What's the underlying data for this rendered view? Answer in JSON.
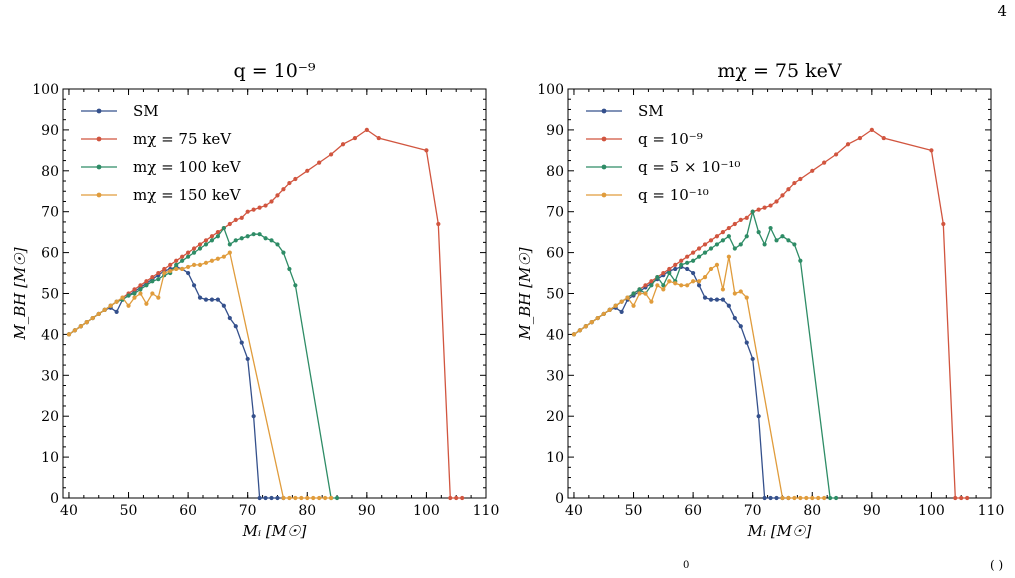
{
  "page": {
    "number": "4",
    "footer_glyph": "0",
    "footer_paren": "( )"
  },
  "colors": {
    "SM": "#34508c",
    "red": "#d1553f",
    "green": "#2e8c66",
    "orange": "#e09c3c"
  },
  "chart_data": [
    {
      "type": "line",
      "title": "q = 10⁻⁹",
      "xlabel": "Mᵢ [M☉]",
      "ylabel": "M_BH [M☉]",
      "xlim": [
        39,
        110
      ],
      "ylim": [
        0,
        100
      ],
      "xticks": [
        40,
        50,
        60,
        70,
        80,
        90,
        100,
        110
      ],
      "yticks": [
        0,
        10,
        20,
        30,
        40,
        50,
        60,
        70,
        80,
        90,
        100
      ],
      "legend_position": "top-left",
      "series": [
        {
          "name": "SM",
          "color": "#34508c",
          "x": [
            40,
            41,
            42,
            43,
            44,
            45,
            46,
            47,
            48,
            49,
            50,
            51,
            52,
            53,
            54,
            55,
            56,
            57,
            58,
            59,
            60,
            61,
            62,
            63,
            64,
            65,
            66,
            67,
            68,
            69,
            70,
            71,
            72,
            73,
            74,
            75,
            76
          ],
          "y": [
            40,
            41,
            42,
            43,
            44,
            45,
            46,
            46.5,
            45.5,
            48.5,
            49.5,
            50.5,
            51.5,
            52.5,
            53.5,
            54.5,
            55.5,
            56,
            56.5,
            56,
            55,
            52,
            49,
            48.5,
            48.5,
            48.5,
            47,
            44,
            42,
            38,
            34,
            20,
            0,
            0,
            0,
            0,
            0
          ]
        },
        {
          "name": "mχ = 75 keV",
          "color": "#d1553f",
          "x": [
            40,
            41,
            42,
            43,
            44,
            45,
            46,
            47,
            48,
            49,
            50,
            51,
            52,
            53,
            54,
            55,
            56,
            57,
            58,
            59,
            60,
            61,
            62,
            63,
            64,
            65,
            66,
            67,
            68,
            69,
            70,
            71,
            72,
            73,
            74,
            75,
            76,
            77,
            78,
            80,
            82,
            84,
            86,
            88,
            90,
            92,
            100,
            102,
            104,
            105,
            106
          ],
          "y": [
            40,
            41,
            42,
            43,
            44,
            45,
            46,
            47,
            48,
            49,
            50,
            51,
            52,
            53,
            54,
            55,
            56,
            57,
            58,
            59,
            60,
            61,
            62,
            63,
            64,
            65,
            66,
            67,
            68,
            68.5,
            70,
            70.5,
            71,
            71.5,
            72.5,
            74,
            75.5,
            77,
            78,
            80,
            82,
            84,
            86.5,
            88,
            90,
            88,
            85,
            67,
            0,
            0,
            0
          ],
          "x_wrong": null
        },
        {
          "name": "mχ = 100 keV",
          "color": "#2e8c66",
          "x": [
            40,
            41,
            42,
            43,
            44,
            45,
            46,
            47,
            48,
            49,
            50,
            51,
            52,
            53,
            54,
            55,
            56,
            57,
            58,
            59,
            60,
            61,
            62,
            63,
            64,
            65,
            66,
            67,
            68,
            69,
            70,
            71,
            72,
            73,
            74,
            75,
            76,
            77,
            78,
            84,
            85
          ],
          "y": [
            40,
            41,
            42,
            43,
            44,
            45,
            46,
            47,
            48,
            48.5,
            49.5,
            50,
            51,
            52,
            53,
            53.5,
            54.5,
            55,
            57,
            58,
            59,
            60,
            61,
            62,
            63,
            64,
            66,
            62,
            63,
            63.5,
            64,
            64.5,
            64.5,
            63.5,
            63,
            62,
            60,
            56,
            52,
            0,
            0
          ]
        },
        {
          "name": "mχ = 150 keV",
          "color": "#e09c3c",
          "x": [
            40,
            41,
            42,
            43,
            44,
            45,
            46,
            47,
            48,
            49,
            50,
            51,
            52,
            53,
            54,
            55,
            56,
            57,
            58,
            59,
            60,
            61,
            62,
            63,
            64,
            65,
            66,
            67,
            76,
            77,
            78,
            79,
            80,
            81,
            82,
            83,
            84
          ],
          "y": [
            40,
            41,
            42,
            43,
            44,
            45,
            46,
            47,
            48,
            49,
            47,
            49,
            50,
            47.5,
            50,
            49,
            55,
            55.5,
            56,
            56,
            56.5,
            57,
            57,
            57.5,
            58,
            58.5,
            59,
            60,
            0,
            0,
            0,
            0,
            0,
            0,
            0,
            0,
            0
          ]
        }
      ]
    },
    {
      "type": "line",
      "title": "mχ = 75 keV",
      "xlabel": "Mᵢ [M☉]",
      "ylabel": "M_BH [M☉]",
      "xlim": [
        39,
        110
      ],
      "ylim": [
        0,
        100
      ],
      "xticks": [
        40,
        50,
        60,
        70,
        80,
        90,
        100,
        110
      ],
      "yticks": [
        0,
        10,
        20,
        30,
        40,
        50,
        60,
        70,
        80,
        90,
        100
      ],
      "legend_position": "top-left",
      "series": [
        {
          "name": "SM",
          "color": "#34508c",
          "x": [
            40,
            41,
            42,
            43,
            44,
            45,
            46,
            47,
            48,
            49,
            50,
            51,
            52,
            53,
            54,
            55,
            56,
            57,
            58,
            59,
            60,
            61,
            62,
            63,
            64,
            65,
            66,
            67,
            68,
            69,
            70,
            71,
            72,
            73,
            74,
            75,
            76
          ],
          "y": [
            40,
            41,
            42,
            43,
            44,
            45,
            46,
            46.5,
            45.5,
            48.5,
            49.5,
            50.5,
            51.5,
            52.5,
            53.5,
            54.5,
            55.5,
            56,
            56.5,
            56,
            55,
            52,
            49,
            48.5,
            48.5,
            48.5,
            47,
            44,
            42,
            38,
            34,
            20,
            0,
            0,
            0,
            0,
            0
          ]
        },
        {
          "name": "q = 10⁻⁹",
          "color": "#d1553f",
          "x": [
            40,
            41,
            42,
            43,
            44,
            45,
            46,
            47,
            48,
            49,
            50,
            51,
            52,
            53,
            54,
            55,
            56,
            57,
            58,
            59,
            60,
            61,
            62,
            63,
            64,
            65,
            66,
            67,
            68,
            69,
            70,
            71,
            72,
            73,
            74,
            75,
            76,
            77,
            78,
            80,
            82,
            84,
            86,
            88,
            90,
            92,
            100,
            102,
            104,
            105,
            106
          ],
          "y": [
            40,
            41,
            42,
            43,
            44,
            45,
            46,
            47,
            48,
            49,
            50,
            51,
            52,
            53,
            54,
            55,
            56,
            57,
            58,
            59,
            60,
            61,
            62,
            63,
            64,
            65,
            66,
            67,
            68,
            68.5,
            70,
            70.5,
            71,
            71.5,
            72.5,
            74,
            75.5,
            77,
            78,
            80,
            82,
            84,
            86.5,
            88,
            90,
            88,
            85,
            67,
            0,
            0,
            0
          ]
        },
        {
          "name": "q = 5 × 10⁻¹⁰",
          "color": "#2e8c66",
          "x": [
            40,
            41,
            42,
            43,
            44,
            45,
            46,
            47,
            48,
            49,
            50,
            51,
            52,
            53,
            54,
            55,
            56,
            57,
            58,
            59,
            60,
            61,
            62,
            63,
            64,
            65,
            66,
            67,
            68,
            69,
            70,
            71,
            72,
            73,
            74,
            75,
            76,
            77,
            78,
            83,
            84
          ],
          "y": [
            40,
            41,
            42,
            43,
            44,
            45,
            46,
            47,
            48,
            49,
            50,
            51,
            50,
            52,
            54,
            52,
            55,
            53,
            57,
            57.5,
            58,
            59,
            60,
            61,
            62,
            63,
            64,
            61,
            62,
            64,
            70,
            65,
            62,
            66,
            63,
            64,
            63,
            62,
            58,
            0,
            0
          ]
        },
        {
          "name": "q = 10⁻¹⁰",
          "color": "#e09c3c",
          "x": [
            40,
            41,
            42,
            43,
            44,
            45,
            46,
            47,
            48,
            49,
            50,
            51,
            52,
            53,
            54,
            55,
            56,
            57,
            58,
            59,
            60,
            61,
            62,
            63,
            64,
            65,
            66,
            67,
            68,
            69,
            75,
            76,
            77,
            78,
            79,
            80,
            81,
            82
          ],
          "y": [
            40,
            41,
            42,
            43,
            44,
            45,
            46,
            47,
            48,
            49,
            47,
            50,
            50,
            48,
            52,
            51,
            53,
            52.5,
            52,
            52,
            53,
            53,
            54,
            56,
            57,
            51,
            59,
            50,
            50.5,
            49,
            0,
            0,
            0,
            0,
            0,
            0,
            0,
            0
          ]
        }
      ]
    }
  ]
}
